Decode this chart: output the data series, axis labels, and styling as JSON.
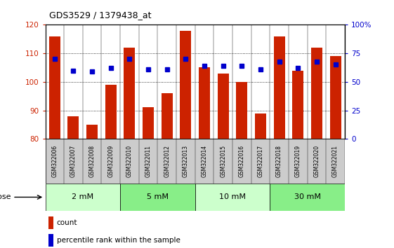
{
  "title": "GDS3529 / 1379438_at",
  "samples": [
    "GSM322006",
    "GSM322007",
    "GSM322008",
    "GSM322009",
    "GSM322010",
    "GSM322011",
    "GSM322012",
    "GSM322013",
    "GSM322014",
    "GSM322015",
    "GSM322016",
    "GSM322017",
    "GSM322018",
    "GSM322019",
    "GSM322020",
    "GSM322021"
  ],
  "bar_values": [
    116,
    88,
    85,
    99,
    112,
    91,
    96,
    118,
    105,
    103,
    100,
    89,
    116,
    104,
    112,
    109
  ],
  "pct_values": [
    70,
    60,
    59,
    62,
    70,
    61,
    61,
    70,
    64,
    64,
    64,
    61,
    68,
    62,
    68,
    65
  ],
  "bar_color": "#cc2200",
  "pct_color": "#0000cc",
  "ylim_left": [
    80,
    120
  ],
  "ylim_right": [
    0,
    100
  ],
  "yticks_left": [
    80,
    90,
    100,
    110,
    120
  ],
  "yticks_right": [
    0,
    25,
    50,
    75,
    100
  ],
  "yticklabels_right": [
    "0",
    "25",
    "50",
    "75",
    "100%"
  ],
  "dose_groups": [
    {
      "label": "2 mM",
      "start": 0,
      "end": 3,
      "color": "#ccffcc"
    },
    {
      "label": "5 mM",
      "start": 4,
      "end": 7,
      "color": "#88ee88"
    },
    {
      "label": "10 mM",
      "start": 8,
      "end": 11,
      "color": "#ccffcc"
    },
    {
      "label": "30 mM",
      "start": 12,
      "end": 15,
      "color": "#88ee88"
    }
  ],
  "legend_count_label": "count",
  "legend_pct_label": "percentile rank within the sample",
  "dose_label": "dose",
  "background_color": "#ffffff",
  "sample_bg_color": "#cccccc",
  "bar_width": 0.6
}
